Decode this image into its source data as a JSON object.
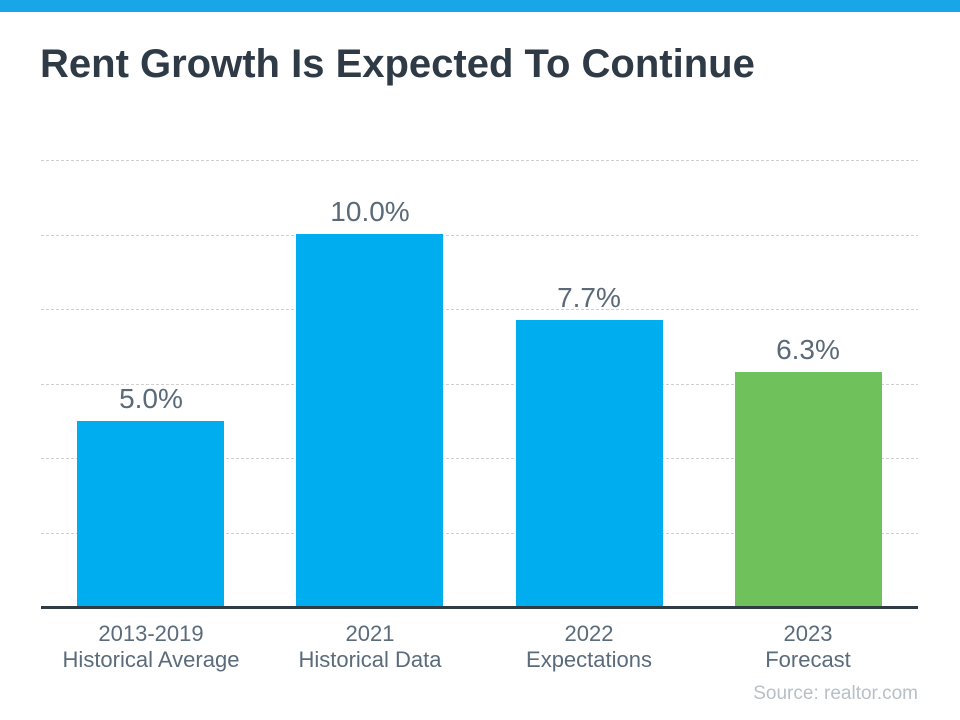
{
  "page": {
    "topbar_color": "#18a6e8",
    "background_color": "#ffffff"
  },
  "header": {
    "title": "Rent Growth Is Expected To Continue"
  },
  "chart_data": {
    "type": "bar",
    "title": "Rent Growth Is Expected To Continue",
    "categories": [
      {
        "line1": "2013-2019",
        "line2": "Historical Average"
      },
      {
        "line1": "2021",
        "line2": "Historical Data"
      },
      {
        "line1": "2022",
        "line2": "Expectations"
      },
      {
        "line1": "2023",
        "line2": "Forecast"
      }
    ],
    "values": [
      5.0,
      10.0,
      7.7,
      6.3
    ],
    "value_labels": [
      "5.0%",
      "10.0%",
      "7.7%",
      "6.3%"
    ],
    "bar_colors": [
      "#00adef",
      "#00adef",
      "#00adef",
      "#6fc15c"
    ],
    "xlabel": "",
    "ylabel": "",
    "ylim": [
      0,
      12
    ],
    "gridline_step": 2,
    "grid": "dashed-horizontal",
    "grid_color": "#cfcfcf",
    "axis_color": "#313b44",
    "legend": "none",
    "y_axis_tick_labels_visible": false
  },
  "footer": {
    "source": "Source: realtor.com"
  }
}
